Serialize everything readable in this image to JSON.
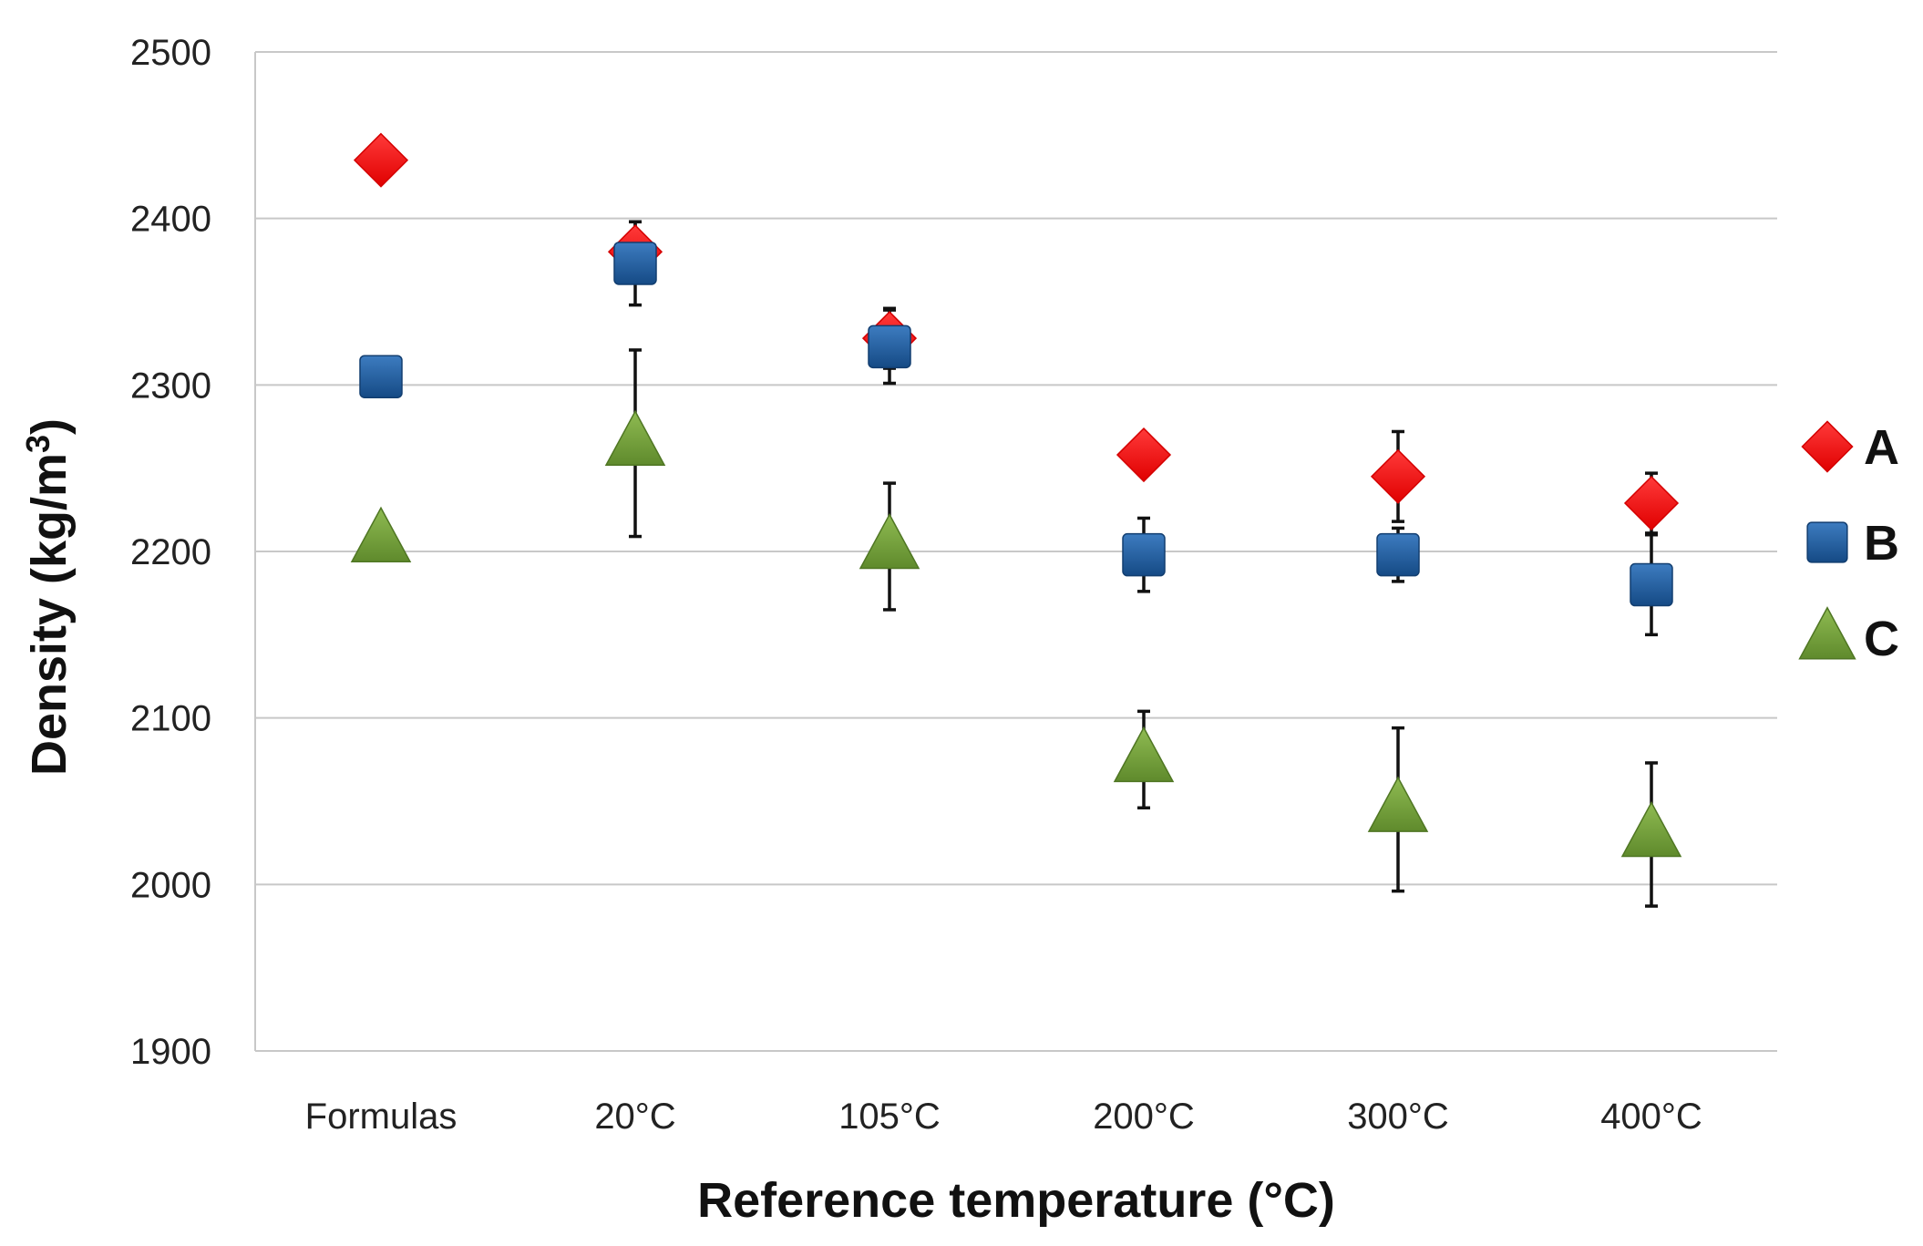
{
  "chart_data": {
    "type": "scatter",
    "title": "",
    "xlabel": "Reference temperature (°C)",
    "ylabel": "Density (kg/m³)",
    "ylabel_main": "Density (kg/m",
    "ylabel_sup": "3",
    "ylabel_close": ")",
    "categories": [
      "Formulas",
      "20°C",
      "105°C",
      "200°C",
      "300°C",
      "400°C"
    ],
    "ylim": [
      1900,
      2500
    ],
    "yticks": [
      1900,
      2000,
      2100,
      2200,
      2300,
      2400,
      2500
    ],
    "grid": true,
    "legend_position": "right",
    "series": [
      {
        "name": "A",
        "marker": "diamond",
        "color": "#ff0000",
        "values": [
          2435,
          2380,
          2328,
          2258,
          2245,
          2229
        ],
        "error": [
          null,
          18,
          18,
          null,
          27,
          18
        ]
      },
      {
        "name": "B",
        "marker": "square",
        "color": "#1f5a99",
        "values": [
          2305,
          2373,
          2323,
          2198,
          2198,
          2180
        ],
        "error": [
          null,
          25,
          22,
          22,
          16,
          30
        ]
      },
      {
        "name": "C",
        "marker": "triangle",
        "color": "#76a03c",
        "values": [
          2207,
          2265,
          2203,
          2075,
          2045,
          2030
        ],
        "error": [
          null,
          56,
          38,
          29,
          49,
          43
        ]
      }
    ]
  }
}
